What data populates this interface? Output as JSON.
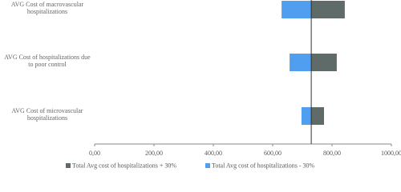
{
  "chart_data": {
    "type": "tornado",
    "categories": [
      "AVG Cost of macrovascular hospitalizations",
      "AVG Cost of hospitalizations due to poor control",
      "AVG Cost of microvascular hospitalizations"
    ],
    "base_value": 730,
    "series": [
      {
        "name": "Total Avg cost of hospitalizations + 30%",
        "color": "#5f6b69",
        "values": [
          843,
          816,
          773
        ]
      },
      {
        "name": "Total Avg cost of hospitalizations - 30%",
        "color": "#4f9ef0",
        "values": [
          630,
          657,
          697
        ]
      }
    ],
    "xlim": [
      0,
      1000
    ],
    "xticks": [
      {
        "value": 0,
        "label": "0,00"
      },
      {
        "value": 200,
        "label": "200,00"
      },
      {
        "value": 400,
        "label": "400,00"
      },
      {
        "value": 600,
        "label": "600,00"
      },
      {
        "value": 800,
        "label": "800,00"
      },
      {
        "value": 1000,
        "label": "1000,00"
      }
    ]
  }
}
